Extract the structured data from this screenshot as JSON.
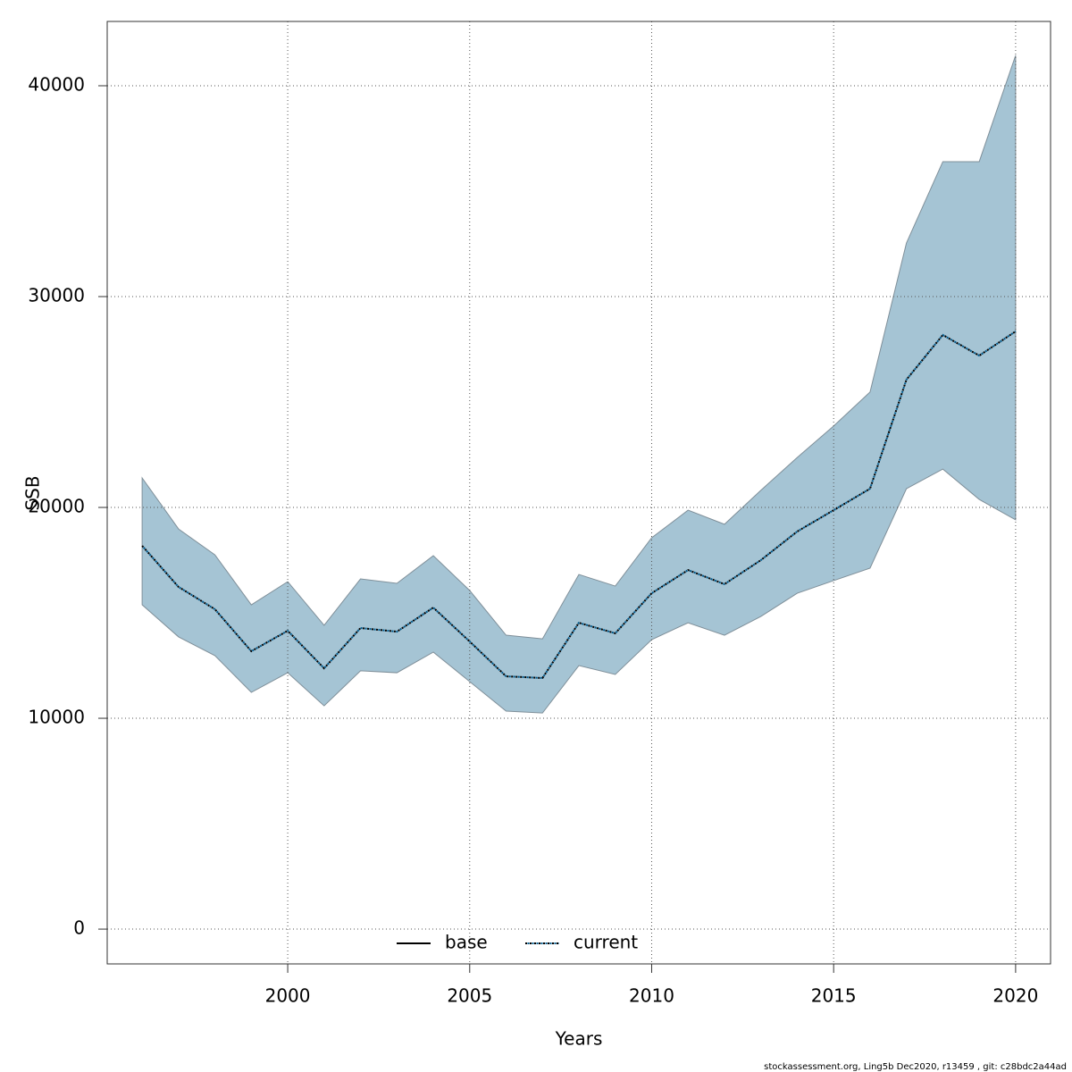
{
  "chart_data": {
    "type": "line",
    "xlabel": "Years",
    "ylabel": "SSB",
    "footnote": "stockassessment.org, Ling5b  Dec2020, r13459 , git: c28bdc2a44ad",
    "x": [
      1996,
      1997,
      1998,
      1999,
      2000,
      2001,
      2002,
      2003,
      2004,
      2005,
      2006,
      2007,
      2008,
      2009,
      2010,
      2011,
      2012,
      2013,
      2014,
      2015,
      2016,
      2017,
      2018,
      2019,
      2020
    ],
    "series": [
      {
        "name": "base",
        "color": "#000000",
        "dash": "solid"
      },
      {
        "name": "current",
        "color": "#005a8c",
        "dash": "dotted",
        "band_color": "#a5c4d4",
        "values": [
          18180,
          16230,
          15170,
          13180,
          14150,
          12370,
          14280,
          14110,
          15250,
          13640,
          11990,
          11910,
          14530,
          14030,
          15930,
          17030,
          16360,
          17500,
          18860,
          19870,
          20890,
          26060,
          28180,
          27200,
          28350
        ],
        "upper": [
          21400,
          18980,
          17750,
          15380,
          16480,
          14410,
          16610,
          16400,
          17710,
          16060,
          13940,
          13770,
          16820,
          16270,
          18560,
          19870,
          19200,
          20810,
          22370,
          23860,
          25470,
          32540,
          36400,
          36400,
          41440
        ],
        "lower": [
          15380,
          13860,
          12970,
          11230,
          12160,
          10590,
          12250,
          12160,
          13140,
          11740,
          10340,
          10250,
          12500,
          12080,
          13730,
          14530,
          13940,
          14830,
          15930,
          16530,
          17120,
          20890,
          21820,
          20380,
          19410
        ]
      }
    ],
    "xlim": [
      1995.04,
      2020.96
    ],
    "ylim": [
      -1650,
      43050
    ],
    "xticks": [
      2000,
      2005,
      2010,
      2015,
      2020
    ],
    "yticks": [
      0,
      10000,
      20000,
      30000,
      40000
    ],
    "grid": true,
    "legend": "bottom"
  }
}
